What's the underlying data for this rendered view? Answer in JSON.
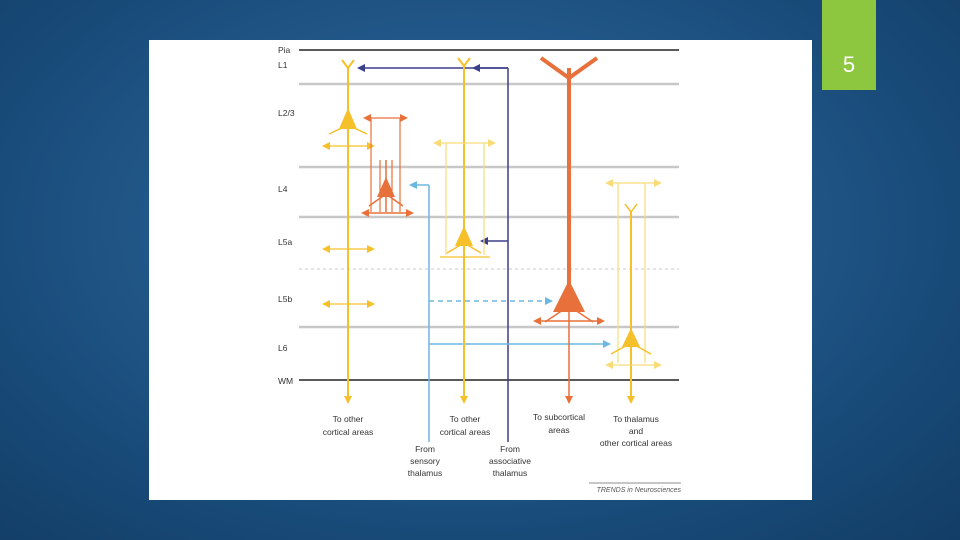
{
  "slide_number": "5",
  "figure": {
    "layers": {
      "pia": "Pia",
      "l1": "L1",
      "l23": "L2/3",
      "l4": "L4",
      "l5a": "L5a",
      "l5b": "L5b",
      "l6": "L6",
      "wm": "WM"
    },
    "outputs": {
      "l23_target": [
        "To other",
        "cortical areas"
      ],
      "l5a_target": [
        "To other",
        "cortical areas"
      ],
      "l5b_target": [
        "To subcortical",
        "areas"
      ],
      "l6_target": [
        "To thalamus",
        "and",
        "other cortical areas"
      ]
    },
    "inputs": {
      "sensory": [
        "From",
        "sensory",
        "thalamus"
      ],
      "associative": [
        "From",
        "associative",
        "thalamus"
      ]
    },
    "credit": "TRENDS in Neurosciences",
    "colors": {
      "yellow": "#f5c02a",
      "pale_yellow": "#f8dc78",
      "orange": "#e8703a",
      "navy": "#3a3f8a",
      "light_blue": "#6bb8e0",
      "layer_line": "#c8c8c8",
      "green_accent": "#8dc63f"
    }
  }
}
